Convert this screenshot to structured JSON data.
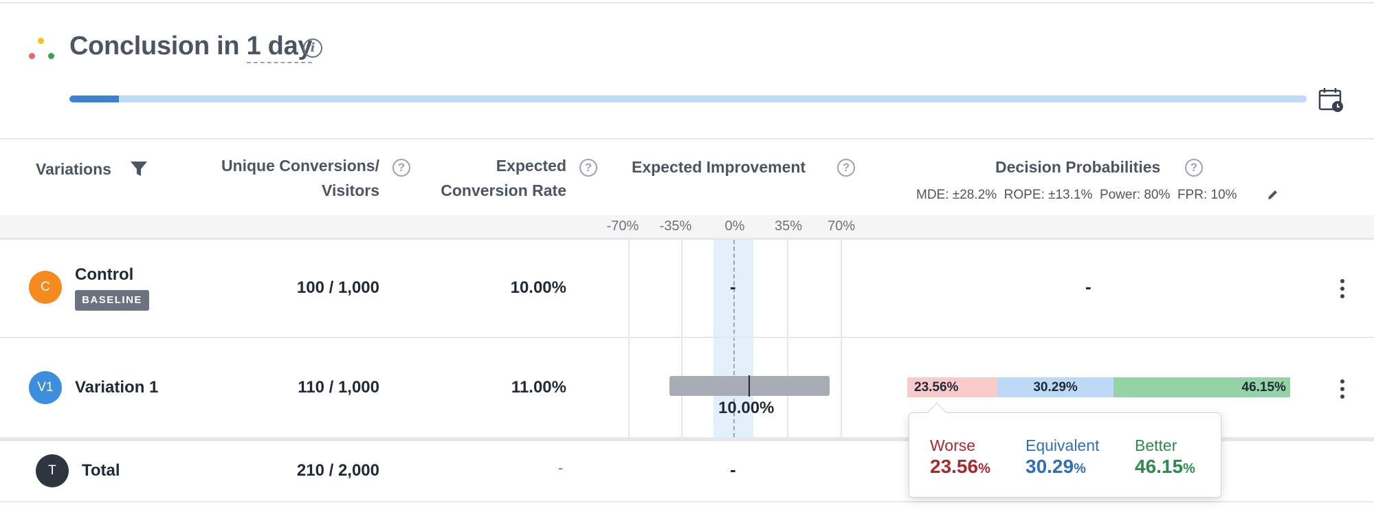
{
  "header": {
    "title_prefix": "Conclusion in ",
    "title_days": "1 day",
    "progress_fraction": 0.04
  },
  "columns": {
    "variations": "Variations",
    "conversions_line1": "Unique Conversions/",
    "conversions_line2": "Visitors",
    "rate_line1": "Expected",
    "rate_line2": "Conversion Rate",
    "improvement": "Expected Improvement",
    "decision": "Decision Probabilities",
    "decision_meta": {
      "mde": "MDE: ±28.2%",
      "rope": "ROPE: ±13.1%",
      "power": "Power: 80%",
      "fpr": "FPR: 10%"
    }
  },
  "axis_ticks": [
    "-70%",
    "-35%",
    "0%",
    "35%",
    "70%"
  ],
  "rows": [
    {
      "avatar": "C",
      "avatar_color": "#f58a1f",
      "name": "Control",
      "badge": "BASELINE",
      "conversions": "100 / 1,000",
      "rate": "10.00%",
      "improvement": "-",
      "decision": "-"
    },
    {
      "avatar": "V1",
      "avatar_color": "#3b8fdc",
      "name": "Variation 1",
      "conversions": "110 / 1,000",
      "rate": "11.00%",
      "improvement": "10.00%",
      "probabilities": {
        "worse": "23.56%",
        "equivalent": "30.29%",
        "better": "46.15%"
      }
    }
  ],
  "total": {
    "avatar": "T",
    "avatar_color": "#2f3640",
    "name": "Total",
    "conversions": "210 / 2,000",
    "rate": "-",
    "improvement": "-"
  },
  "popover": {
    "worse_label": "Worse",
    "worse_value": "23.56",
    "equivalent_label": "Equivalent",
    "equivalent_value": "30.29",
    "better_label": "Better",
    "better_value": "46.15",
    "unit": "%"
  },
  "colors": {
    "worse": "#a8292e",
    "equivalent": "#2f6fb5",
    "better": "#2f8a4e",
    "worse_bg": "#f8caca",
    "equivalent_bg": "#bcd9f5",
    "better_bg": "#93d3a6"
  }
}
